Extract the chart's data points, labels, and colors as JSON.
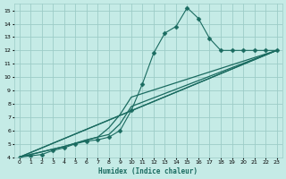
{
  "xlabel": "Humidex (Indice chaleur)",
  "bg_color": "#c5ebe6",
  "grid_color": "#9dccc7",
  "line_color": "#1a6b60",
  "xlim": [
    -0.5,
    23.5
  ],
  "ylim": [
    4,
    15.5
  ],
  "xticks": [
    0,
    1,
    2,
    3,
    4,
    5,
    6,
    7,
    8,
    9,
    10,
    11,
    12,
    13,
    14,
    15,
    16,
    17,
    18,
    19,
    20,
    21,
    22,
    23
  ],
  "yticks": [
    4,
    5,
    6,
    7,
    8,
    9,
    10,
    11,
    12,
    13,
    14,
    15
  ],
  "lines": [
    {
      "x": [
        0,
        1,
        2,
        3,
        4,
        5,
        6,
        7,
        8,
        9,
        10,
        11,
        12,
        13,
        14,
        15,
        16,
        17,
        18,
        19,
        20,
        21,
        22,
        23
      ],
      "y": [
        4,
        4.1,
        4.2,
        4.5,
        4.7,
        5.0,
        5.2,
        5.3,
        5.5,
        6.0,
        7.5,
        9.5,
        11.8,
        13.3,
        13.8,
        15.2,
        14.4,
        12.9,
        12.0,
        12.0,
        12.0,
        12.0,
        12.0,
        12.0
      ],
      "marker": "D",
      "markersize": 2.5,
      "linewidth": 0.8,
      "linestyle": "-"
    },
    {
      "x": [
        0,
        23
      ],
      "y": [
        4,
        12.0
      ],
      "marker": null,
      "markersize": 0,
      "linewidth": 0.9,
      "linestyle": "-"
    },
    {
      "x": [
        0,
        23
      ],
      "y": [
        4,
        12.0
      ],
      "marker": null,
      "markersize": 0,
      "linewidth": 0.9,
      "linestyle": "-"
    },
    {
      "x": [
        0,
        4,
        7,
        8,
        9,
        10,
        23
      ],
      "y": [
        4,
        4.8,
        5.5,
        6.2,
        7.2,
        8.5,
        12.0
      ],
      "marker": null,
      "markersize": 0,
      "linewidth": 0.9,
      "linestyle": "-"
    },
    {
      "x": [
        0,
        4,
        6,
        7,
        8,
        9,
        10,
        23
      ],
      "y": [
        4,
        4.8,
        5.3,
        5.5,
        5.7,
        6.5,
        7.8,
        12.0
      ],
      "marker": null,
      "markersize": 0,
      "linewidth": 0.9,
      "linestyle": "-"
    }
  ]
}
